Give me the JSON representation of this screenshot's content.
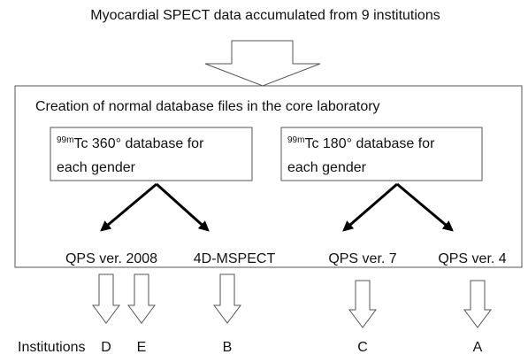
{
  "title": "Myocardial SPECT data accumulated from 9 institutions",
  "core": {
    "label": "Creation of normal database files in the core laboratory",
    "databases": [
      {
        "isotope": "99m",
        "line1": "Tc 360° database for",
        "line2": "each gender"
      },
      {
        "isotope": "99m",
        "line1": "Tc 180° database for",
        "line2": "each gender"
      }
    ],
    "software": [
      "QPS ver. 2008",
      "4D-MSPECT",
      "QPS ver. 7",
      "QPS ver. 4"
    ]
  },
  "institutions": {
    "label": "Institutions",
    "items": [
      "D",
      "E",
      "B",
      "C",
      "A"
    ]
  }
}
